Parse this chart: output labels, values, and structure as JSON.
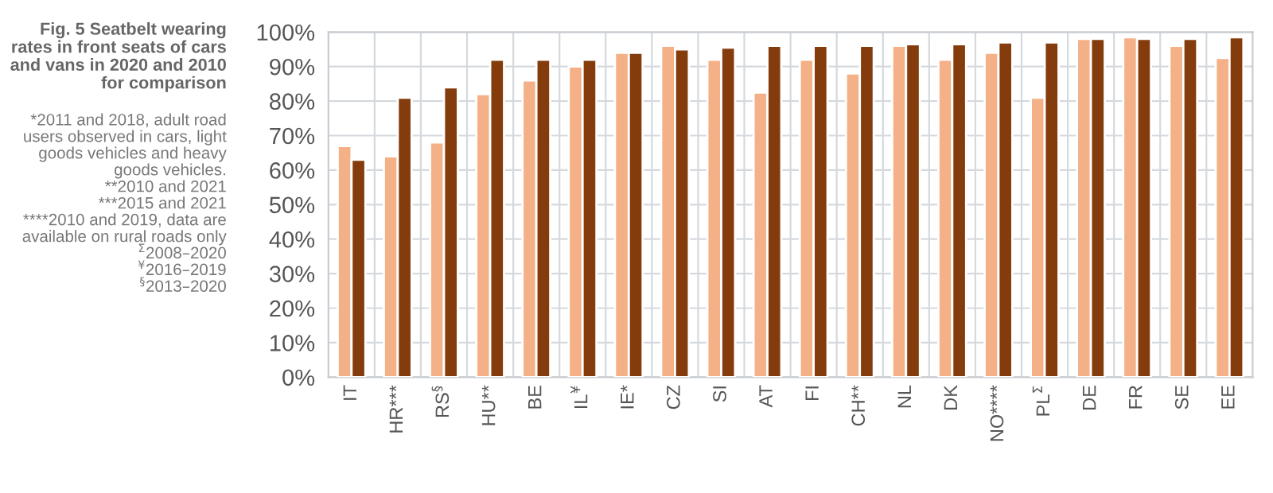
{
  "chart_data": {
    "type": "bar",
    "title": "Fig. 5 Seatbelt wearing rates in front seats of cars and vans in 2020 and 2010 for comparison",
    "annotations": [
      "*2011 and 2018, adult road users observed in cars, light goods vehicles and heavy goods vehicles.",
      "**2010 and 2021",
      "***2015 and 2021",
      "****2010 and 2019, data are available on rural roads only",
      "$^{Σ}$2008–2020",
      "$^{¥}$2016–2019",
      "$^{§}$2013–2020"
    ],
    "categories": [
      "IT",
      "HR***",
      "RS$^{§}$",
      "HU**",
      "BE",
      "IL$^{¥}$",
      "IE*",
      "CZ",
      "SI",
      "AT",
      "FI",
      "CH**",
      "NL",
      "DK",
      "NO****",
      "PL$^{Σ}$",
      "DE",
      "FR",
      "SE",
      "EE"
    ],
    "series": [
      {
        "color": "#f4b086",
        "values": [
          67,
          64,
          68,
          82,
          86,
          90,
          94,
          96,
          92,
          82.5,
          92,
          88,
          96,
          92,
          94,
          81,
          98,
          98.5,
          96,
          92.5
        ]
      },
      {
        "color": "#843c0c",
        "values": [
          63,
          81,
          84,
          92,
          92,
          92,
          94,
          95,
          95.5,
          96,
          96,
          96,
          96.5,
          96.5,
          97,
          97,
          98,
          98,
          98,
          98.5
        ]
      }
    ],
    "ylim": [
      0,
      100
    ],
    "yticks": [
      {
        "value": 0,
        "label": "0%"
      },
      {
        "value": 10,
        "label": "10%"
      },
      {
        "value": 20,
        "label": "20%"
      },
      {
        "value": 30,
        "label": "30%"
      },
      {
        "value": 40,
        "label": "40%"
      },
      {
        "value": 50,
        "label": "50%"
      },
      {
        "value": 60,
        "label": "60%"
      },
      {
        "value": 70,
        "label": "70%"
      },
      {
        "value": 80,
        "label": "80%"
      },
      {
        "value": 90,
        "label": "90%"
      },
      {
        "value": 100,
        "label": "100%"
      }
    ],
    "grid": true,
    "legend": false
  }
}
